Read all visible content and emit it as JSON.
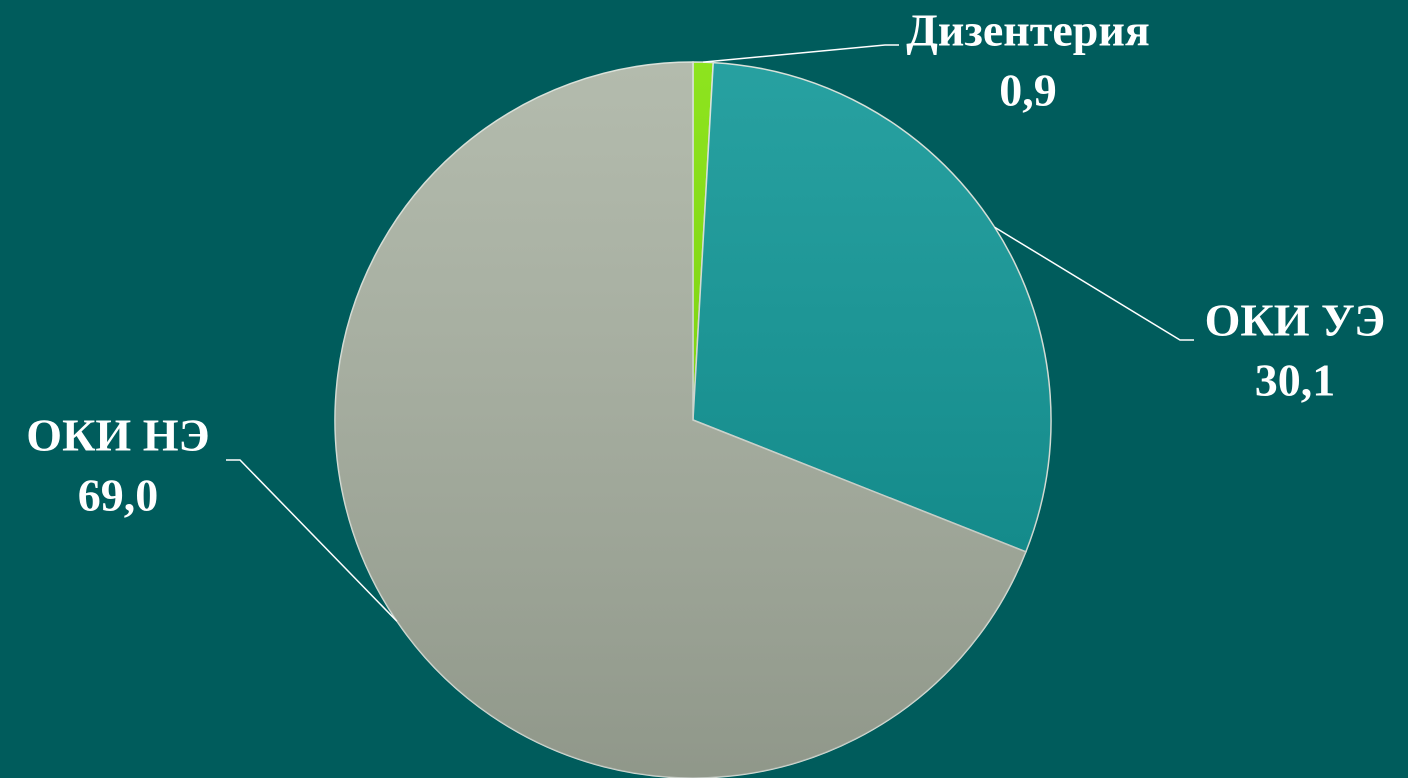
{
  "chart_data": {
    "type": "pie",
    "categories": [
      "Дизентерия",
      "ОКИ УЭ",
      "ОКИ НЭ"
    ],
    "values": [
      0.9,
      30.1,
      69.0
    ],
    "value_labels": [
      "0,9",
      "30,1",
      "69,0"
    ],
    "colors": [
      "#7ee000",
      "#0a9494",
      "#a9b2a2"
    ]
  }
}
